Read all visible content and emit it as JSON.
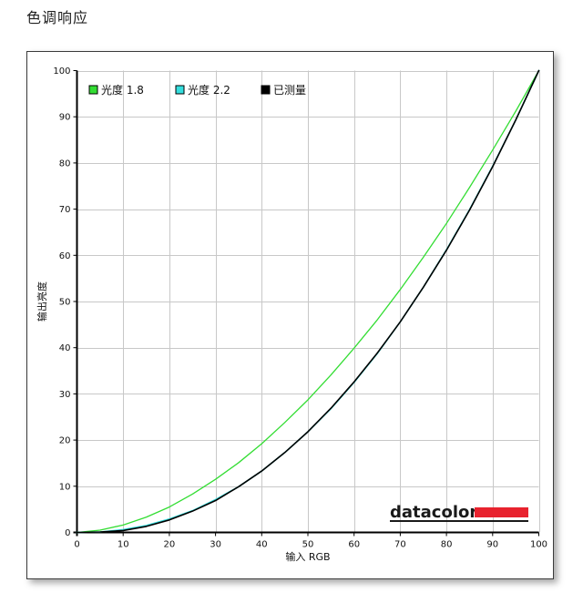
{
  "page": {
    "title": "色调响应"
  },
  "brand": {
    "name": "datacolor",
    "bar_color": "#e8222e"
  },
  "chart_data": {
    "type": "line",
    "xlabel": "输入 RGB",
    "ylabel": "输出亮度",
    "xlim": [
      0,
      100
    ],
    "ylim": [
      0,
      100
    ],
    "x_ticks": [
      0,
      10,
      20,
      30,
      40,
      50,
      60,
      70,
      80,
      90,
      100
    ],
    "y_ticks": [
      0,
      10,
      20,
      30,
      40,
      50,
      60,
      70,
      80,
      90,
      100
    ],
    "grid": true,
    "legend_position": "top-left",
    "x": [
      0,
      5,
      10,
      15,
      20,
      25,
      30,
      35,
      40,
      45,
      50,
      55,
      60,
      65,
      70,
      75,
      80,
      85,
      90,
      95,
      100
    ],
    "series": [
      {
        "name": "光度 1.8",
        "color": "#33dd33",
        "values": [
          0,
          0.5,
          1.6,
          3.3,
          5.5,
          8.3,
          11.5,
          15.1,
          19.2,
          23.8,
          28.7,
          34.1,
          39.9,
          46.0,
          52.6,
          59.6,
          66.9,
          74.7,
          82.8,
          91.2,
          100
        ]
      },
      {
        "name": "光度 2.2",
        "color": "#33dddd",
        "values": [
          0,
          0.1,
          0.6,
          1.5,
          2.9,
          4.7,
          7.1,
          9.9,
          13.3,
          17.3,
          21.8,
          26.8,
          32.5,
          38.7,
          45.6,
          53.1,
          61.2,
          69.9,
          79.3,
          89.3,
          100
        ]
      },
      {
        "name": "已测量",
        "color": "#000000",
        "values": [
          0,
          0.1,
          0.4,
          1.3,
          2.7,
          4.6,
          6.9,
          9.9,
          13.3,
          17.3,
          21.8,
          26.9,
          32.6,
          38.8,
          45.6,
          53.1,
          61.1,
          69.8,
          79.2,
          89.3,
          100
        ]
      }
    ]
  }
}
